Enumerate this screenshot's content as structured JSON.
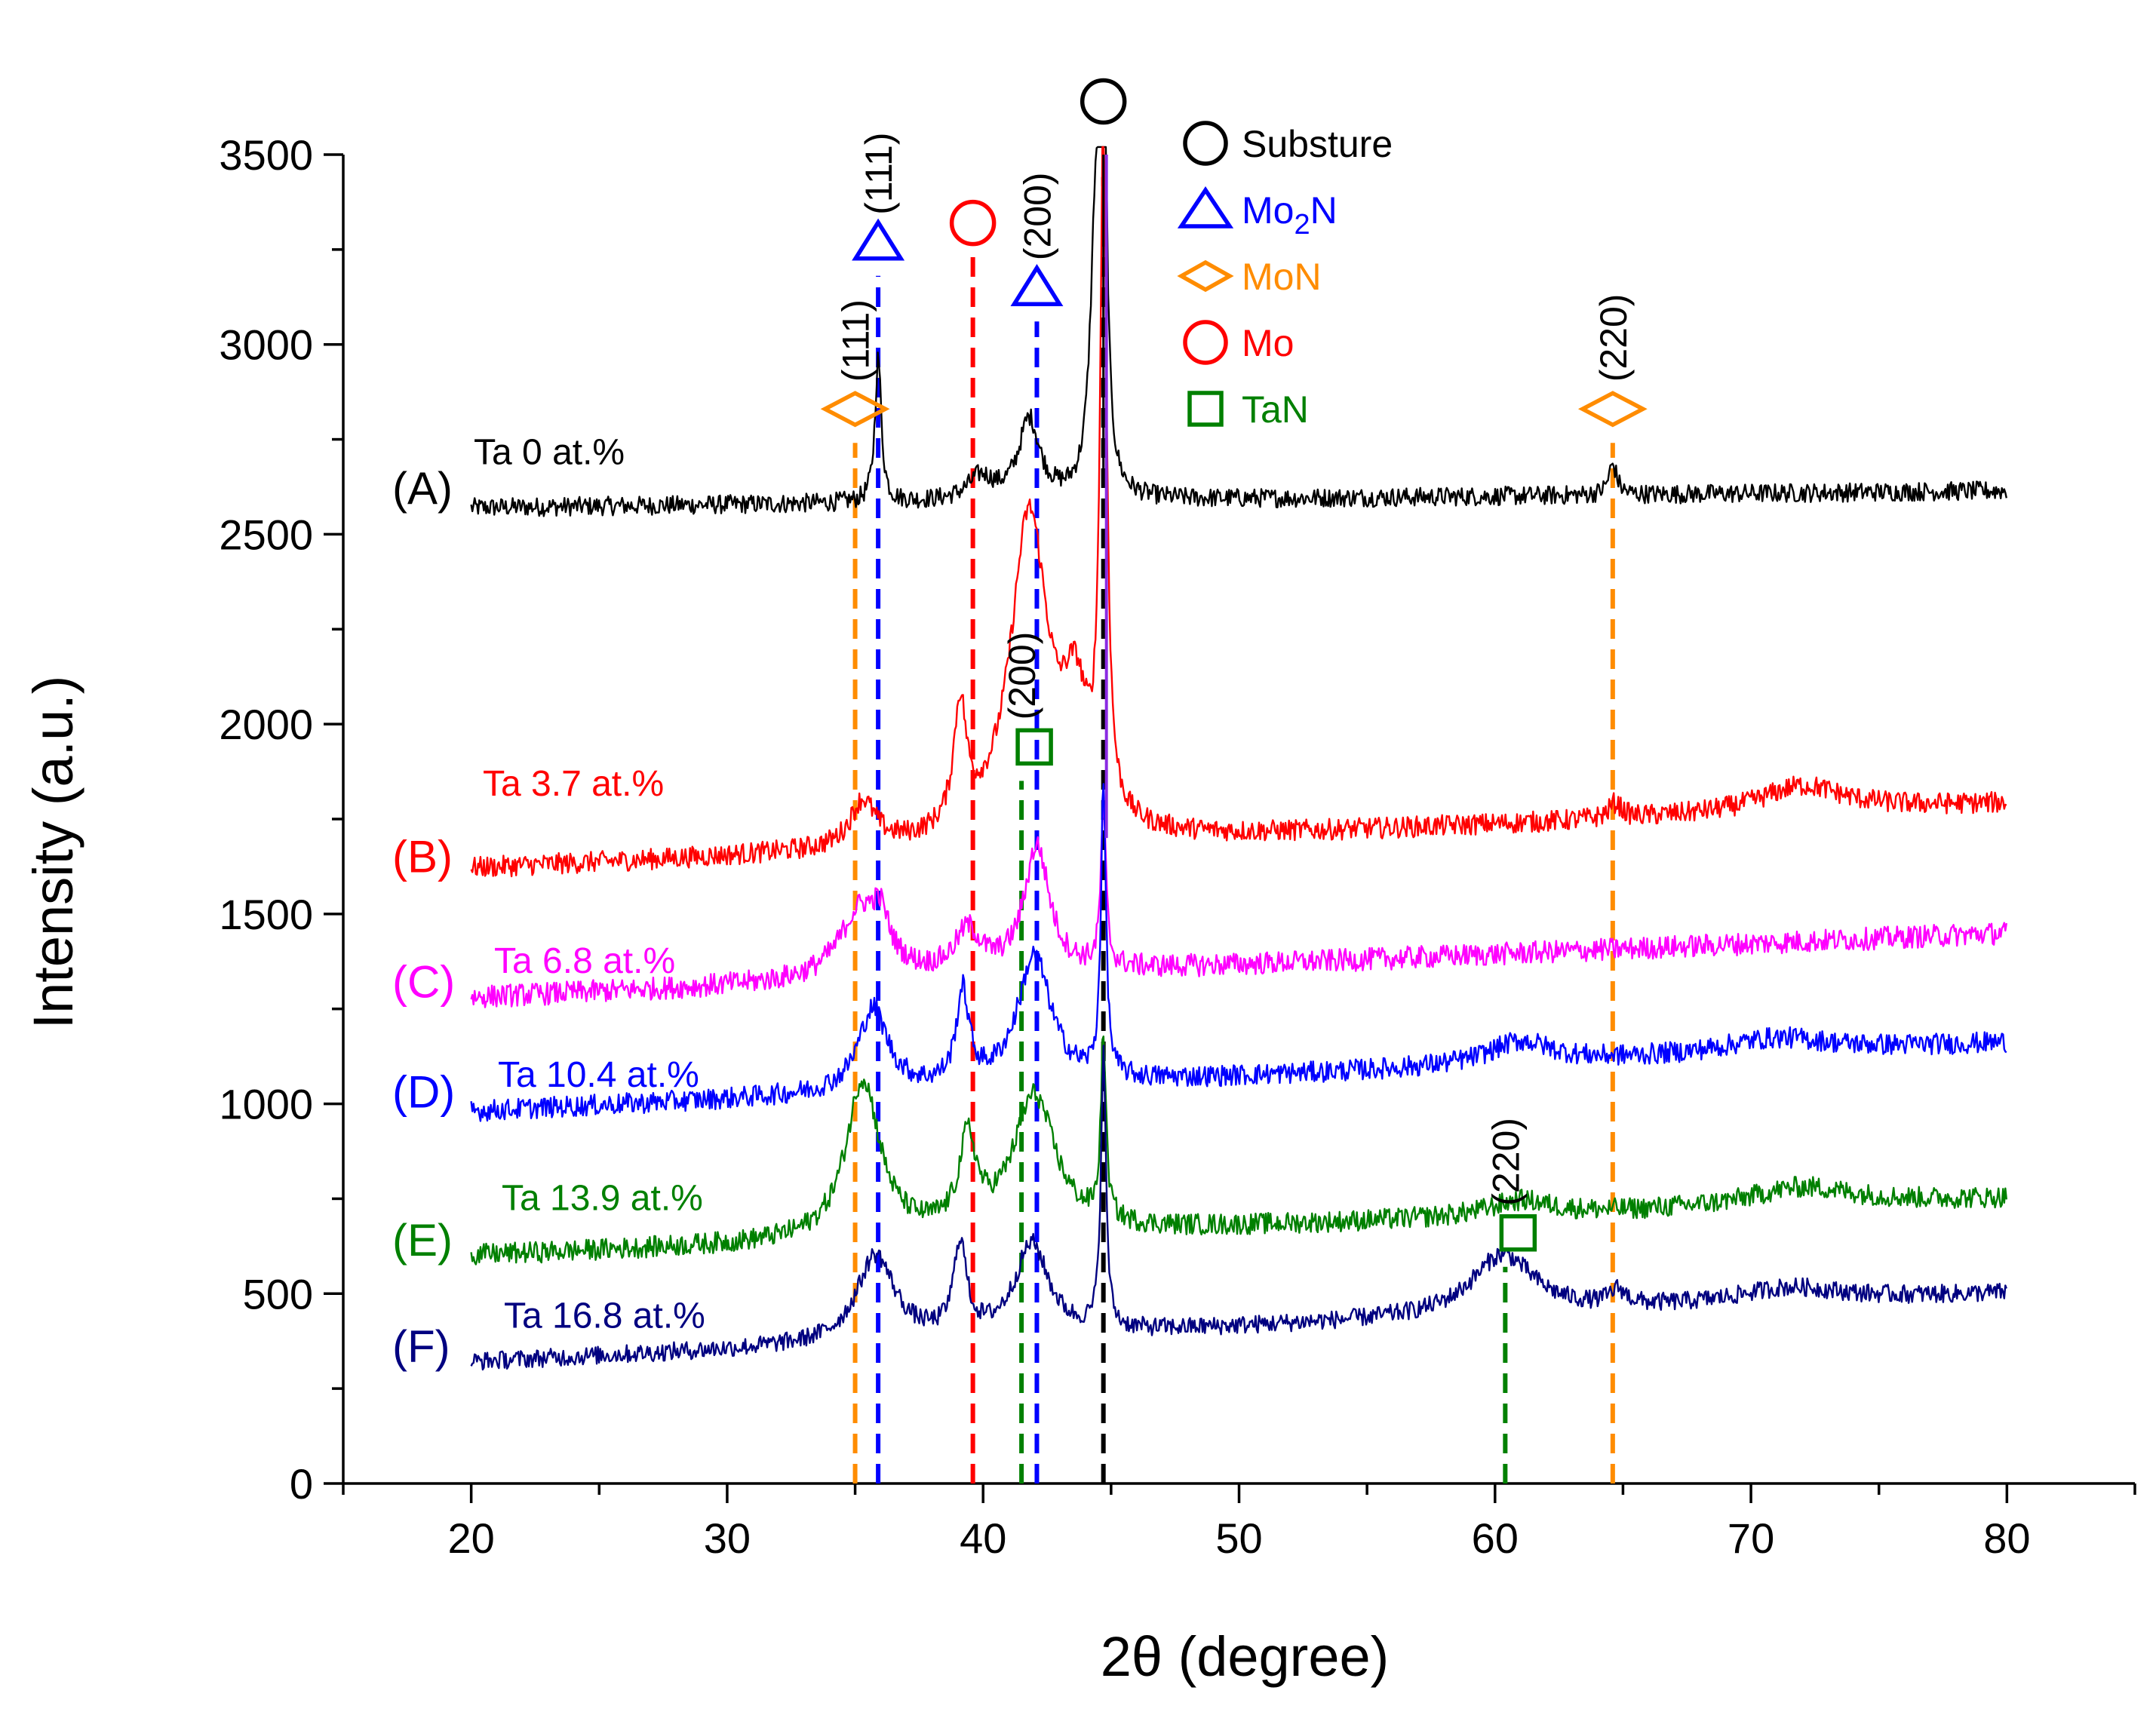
{
  "chart_data": {
    "type": "line",
    "xlabel": "2θ (degree)",
    "ylabel": "Intensity (a.u.)",
    "xlim": [
      15,
      85
    ],
    "ylim": [
      0,
      3500
    ],
    "xticks": [
      20,
      30,
      40,
      50,
      60,
      70,
      80
    ],
    "yticks": [
      0,
      500,
      1000,
      1500,
      2000,
      2500,
      3000,
      3500
    ],
    "grid": false,
    "x_range": [
      20,
      80
    ],
    "substrate_peak": 44.7,
    "series": [
      {
        "id": "A",
        "letter": "(A)",
        "name": "Ta 0 at.%",
        "color": "#000000",
        "base_start": 2570,
        "base_end": 2615,
        "noise": 25,
        "peaks": [
          [
            35.9,
            380,
            0.15
          ],
          [
            39.9,
            60,
            0.6
          ],
          [
            41.8,
            210,
            0.5
          ],
          [
            44.4,
            700,
            0.25
          ],
          [
            44.7,
            1400,
            0.12
          ],
          [
            64.6,
            80,
            0.2
          ]
        ]
      },
      {
        "id": "B",
        "letter": "(B)",
        "name": "Ta 3.7 at.%",
        "color": "#ff0000",
        "base_start": 1620,
        "base_end": 1790,
        "noise": 28,
        "peaks": [
          [
            35.3,
            120,
            0.6
          ],
          [
            39.1,
            320,
            0.3
          ],
          [
            41.8,
            850,
            0.9
          ],
          [
            43.6,
            300,
            0.6
          ],
          [
            44.7,
            1800,
            0.15
          ],
          [
            64.7,
            40,
            0.3
          ],
          [
            72.0,
            70,
            2.0
          ]
        ]
      },
      {
        "id": "C",
        "letter": "(C)",
        "name": "Ta 6.8 at.%",
        "color": "#ff00ff",
        "base_start": 1280,
        "base_end": 1450,
        "noise": 30,
        "peaks": [
          [
            35.2,
            180,
            1.0
          ],
          [
            36.0,
            100,
            0.4
          ],
          [
            39.4,
            110,
            0.6
          ],
          [
            42.1,
            330,
            0.6
          ],
          [
            44.7,
            420,
            0.12
          ]
        ]
      },
      {
        "id": "D",
        "letter": "(D)",
        "name": "Ta 10.4 at.%",
        "color": "#0000ff",
        "base_start": 980,
        "base_end": 1160,
        "noise": 28,
        "peaks": [
          [
            35.7,
            220,
            0.7
          ],
          [
            39.2,
            240,
            0.3
          ],
          [
            42.0,
            340,
            0.8
          ],
          [
            44.7,
            760,
            0.12
          ],
          [
            61.0,
            60,
            1.5
          ],
          [
            71.0,
            40,
            2.5
          ]
        ]
      },
      {
        "id": "E",
        "letter": "(E)",
        "name": "Ta 13.9 at.%",
        "color": "#008000",
        "base_start": 600,
        "base_end": 750,
        "noise": 28,
        "peaks": [
          [
            35.3,
            420,
            0.8
          ],
          [
            39.4,
            230,
            0.4
          ],
          [
            42.0,
            360,
            1.0
          ],
          [
            44.7,
            480,
            0.12
          ],
          [
            61.0,
            40,
            1.5
          ],
          [
            72.0,
            50,
            2.5
          ]
        ]
      },
      {
        "id": "F",
        "letter": "(F)",
        "name": "Ta 16.8 at.%",
        "color": "#000080",
        "base_start": 320,
        "base_end": 500,
        "noise": 24,
        "peaks": [
          [
            35.8,
            230,
            0.9
          ],
          [
            39.1,
            240,
            0.3
          ],
          [
            41.9,
            240,
            0.8
          ],
          [
            44.7,
            720,
            0.12
          ],
          [
            60.3,
            160,
            1.5
          ],
          [
            64.8,
            40,
            0.4
          ],
          [
            71.5,
            40,
            2.5
          ]
        ]
      }
    ],
    "reference_lines": [
      {
        "phase": "MoN",
        "hkl": "(111)",
        "x": 35.0,
        "y_top": 2830,
        "color": "#ff8c00"
      },
      {
        "phase": "Mo2N",
        "hkl": "(111)",
        "x": 35.9,
        "y_top": 3270,
        "color": "#0000ff"
      },
      {
        "phase": "Mo",
        "hkl": "",
        "x": 39.6,
        "y_top": 3320,
        "color": "#ff0000"
      },
      {
        "phase": "TaN",
        "hkl": "(200)",
        "x": 41.5,
        "y_top": 1940,
        "color": "#008000"
      },
      {
        "phase": "Mo2N",
        "hkl": "(200)",
        "x": 42.1,
        "y_top": 3150,
        "color": "#0000ff"
      },
      {
        "phase": "Substure",
        "hkl": "",
        "x": 44.7,
        "y_top": 3530,
        "color": "#000000"
      },
      {
        "phase": "TaN",
        "hkl": "(220)",
        "x": 60.4,
        "y_top": 660,
        "color": "#008000"
      },
      {
        "phase": "MoN",
        "hkl": "(220)",
        "x": 64.6,
        "y_top": 2830,
        "color": "#ff8c00"
      }
    ],
    "legend": [
      {
        "symbol": "circle",
        "label": "Substure",
        "color": "#000000"
      },
      {
        "symbol": "triangle",
        "label_main": "Mo",
        "label_sub": "2",
        "label_tail": "N",
        "color": "#0000ff"
      },
      {
        "symbol": "diamond",
        "label": "MoN",
        "color": "#ff8c00"
      },
      {
        "symbol": "circle",
        "label": "Mo",
        "color": "#ff0000"
      },
      {
        "symbol": "square",
        "label": "TaN",
        "color": "#008000"
      }
    ]
  }
}
